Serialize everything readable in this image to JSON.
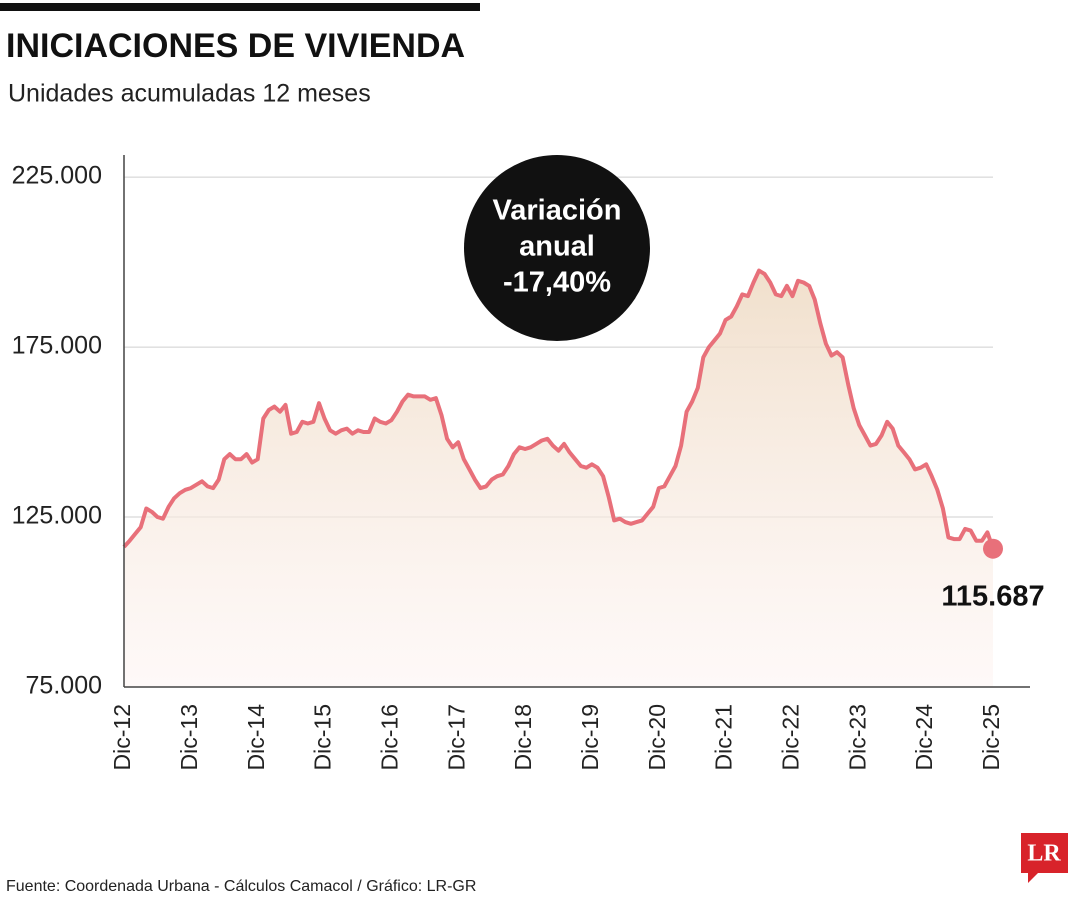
{
  "chart_data": {
    "type": "line",
    "title": "INICIACIONES DE VIVIENDA",
    "subtitle": "Unidades acumuladas 12 meses",
    "annotation": [
      "Variación",
      "anual",
      "-17,40%"
    ],
    "source": "Fuente: Coordenada Urbana - Cálculos Camacol  / Gráfico: LR-GR",
    "logo": "LR",
    "categories": [
      "Dic-12",
      null,
      null,
      null,
      null,
      null,
      null,
      null,
      null,
      null,
      null,
      null,
      "Dic-13",
      null,
      null,
      null,
      null,
      null,
      null,
      null,
      null,
      null,
      null,
      null,
      "Dic-14",
      null,
      null,
      null,
      null,
      null,
      null,
      null,
      null,
      null,
      null,
      null,
      "Dic-15",
      null,
      null,
      null,
      null,
      null,
      null,
      null,
      null,
      null,
      null,
      null,
      "Dic-16",
      null,
      null,
      null,
      null,
      null,
      null,
      null,
      null,
      null,
      null,
      null,
      "Dic-17",
      null,
      null,
      null,
      null,
      null,
      null,
      null,
      null,
      null,
      null,
      null,
      "Dic-18",
      null,
      null,
      null,
      null,
      null,
      null,
      null,
      null,
      null,
      null,
      null,
      "Dic-19",
      null,
      null,
      null,
      null,
      null,
      null,
      null,
      null,
      null,
      null,
      null,
      "Dic-20",
      null,
      null,
      null,
      null,
      null,
      null,
      null,
      null,
      null,
      null,
      null,
      "Dic-21",
      null,
      null,
      null,
      null,
      null,
      null,
      null,
      null,
      null,
      null,
      null,
      "Dic-22",
      null,
      null,
      null,
      null,
      null,
      null,
      null,
      null,
      null,
      null,
      null,
      "Dic-23",
      null,
      null,
      null,
      null,
      null,
      null,
      null,
      null,
      null,
      null,
      null,
      "Dic-24",
      null,
      null,
      null,
      null,
      null,
      null,
      null,
      null,
      null,
      null,
      null,
      "Dic-25"
    ],
    "values": [
      116200,
      118000,
      120000,
      122000,
      127500,
      126500,
      125000,
      124500,
      128000,
      130500,
      132000,
      133000,
      133500,
      134500,
      135500,
      134000,
      133500,
      136000,
      142000,
      143500,
      142000,
      142000,
      143500,
      141000,
      142000,
      154000,
      156500,
      157500,
      156000,
      158000,
      149500,
      150000,
      153000,
      152500,
      153000,
      158500,
      154000,
      150500,
      149500,
      150500,
      151000,
      149500,
      150500,
      150000,
      150000,
      154000,
      153000,
      152500,
      153500,
      156000,
      159000,
      161000,
      160500,
      160500,
      160500,
      159500,
      160000,
      155000,
      148000,
      145500,
      147000,
      142000,
      139000,
      136000,
      133500,
      134000,
      136000,
      137000,
      137500,
      140000,
      143500,
      145500,
      145000,
      145500,
      146500,
      147500,
      148000,
      146000,
      144500,
      146500,
      144000,
      142000,
      140000,
      139500,
      140500,
      139500,
      137000,
      131000,
      124000,
      124500,
      123500,
      123000,
      123500,
      124000,
      126000,
      128000,
      133500,
      134000,
      137000,
      140000,
      146000,
      156000,
      159000,
      163000,
      172000,
      175000,
      177000,
      179000,
      183000,
      184000,
      187000,
      190500,
      190000,
      194000,
      197500,
      196500,
      194000,
      190500,
      190000,
      193000,
      190000,
      194500,
      194000,
      193000,
      189000,
      182000,
      176000,
      172500,
      173500,
      172000,
      164000,
      157000,
      152000,
      149000,
      146000,
      146500,
      149000,
      153000,
      151000,
      146000,
      144000,
      142000,
      139000,
      139500,
      140500,
      137000,
      133000,
      127500,
      119000,
      118500,
      118500,
      121500,
      121000,
      118000,
      118000,
      120500,
      115687
    ],
    "value_labels": [
      null,
      null,
      null,
      null,
      null,
      null,
      null,
      null,
      null,
      null,
      null,
      null,
      null,
      null,
      null,
      null,
      null,
      null,
      null,
      null,
      null,
      null,
      null,
      null,
      null,
      null,
      null,
      null,
      null,
      null,
      null,
      null,
      null,
      null,
      null,
      null,
      null,
      null,
      null,
      null,
      null,
      null,
      null,
      null,
      null,
      null,
      null,
      null,
      null,
      null,
      null,
      null,
      null,
      null,
      null,
      null,
      null,
      null,
      null,
      null,
      null,
      null,
      null,
      null,
      null,
      null,
      null,
      null,
      null,
      null,
      null,
      null,
      null,
      null,
      null,
      null,
      null,
      null,
      null,
      null,
      null,
      null,
      null,
      null,
      null,
      null,
      null,
      null,
      null,
      null,
      null,
      null,
      null,
      null,
      null,
      null,
      null,
      null,
      null,
      null,
      null,
      null,
      null,
      null,
      null,
      null,
      null,
      null,
      null,
      null,
      null,
      null,
      null,
      null,
      null,
      null,
      null,
      null,
      null,
      null,
      null,
      null,
      null,
      null,
      null,
      null,
      null,
      null,
      null,
      null,
      null,
      null,
      null,
      null,
      null,
      null,
      null,
      null,
      null,
      null,
      null,
      null,
      null,
      null,
      null,
      null,
      null,
      null,
      null,
      null,
      null,
      null,
      null,
      null,
      null,
      null,
      "115.687"
    ],
    "color": "#e8707a",
    "ylim": [
      75000,
      231500
    ],
    "yticks": [
      {
        "value": 75000,
        "label": "75.000"
      },
      {
        "value": 125000,
        "label": "125.000"
      },
      {
        "value": 175000,
        "label": "175.000"
      },
      {
        "value": 225000,
        "label": "225.000"
      }
    ],
    "grid": true
  }
}
